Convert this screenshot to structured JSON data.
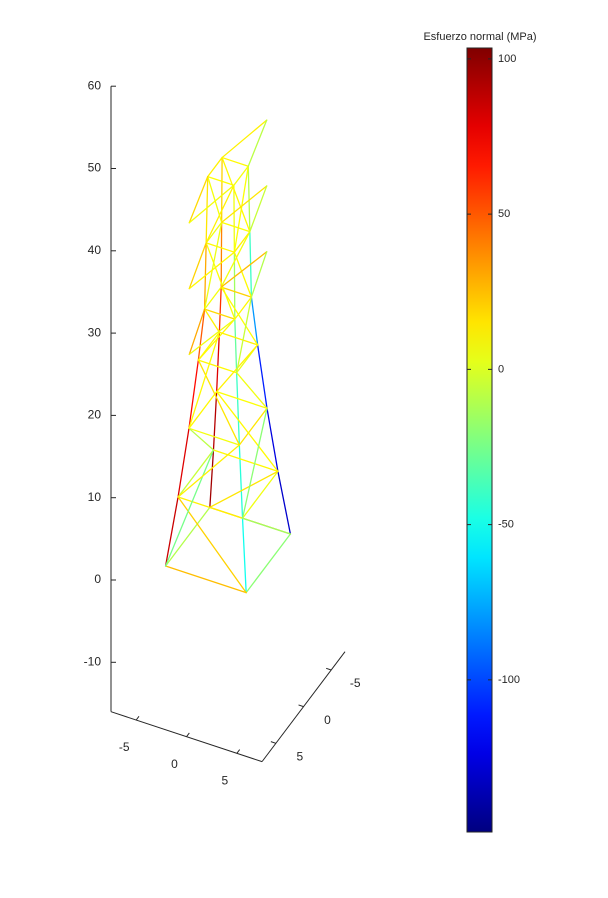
{
  "chart_data": {
    "type": "wireframe",
    "colormap": "jet",
    "xlim": [
      -7.5,
      7.5
    ],
    "ylim": [
      -7.5,
      7.5
    ],
    "zlim": [
      -16,
      60
    ],
    "xticks": [
      -5,
      0,
      5
    ],
    "yticks": [
      -5,
      0,
      5
    ],
    "zticks": [
      -10,
      0,
      10,
      20,
      30,
      40,
      50,
      60
    ],
    "colorbar": {
      "label": "Esfuerzo normal (MPa)",
      "clim": [
        -149,
        103.5
      ],
      "ticks": [
        -100,
        -50,
        0,
        50,
        100
      ]
    },
    "members": [
      [
        -4,
        -4,
        0,
        -3.2,
        -3.2,
        8
      ],
      [
        -3.2,
        -3.2,
        8,
        -2.5,
        -2.5,
        16
      ],
      [
        -2.5,
        -2.5,
        16,
        -1.9,
        -1.9,
        24
      ],
      [
        -1.9,
        -1.9,
        24,
        -1.5,
        -1.5,
        30
      ],
      [
        -1.5,
        -1.5,
        30,
        -1.4,
        -1.4,
        38
      ],
      [
        -1.4,
        -1.4,
        38,
        -1.3,
        -1.3,
        46
      ],
      [
        4,
        -4,
        0,
        3.2,
        -3.2,
        8
      ],
      [
        3.2,
        -3.2,
        8,
        2.5,
        -2.5,
        16
      ],
      [
        2.5,
        -2.5,
        16,
        1.9,
        -1.9,
        24
      ],
      [
        1.9,
        -1.9,
        24,
        1.5,
        -1.5,
        30
      ],
      [
        1.5,
        -1.5,
        30,
        1.4,
        -1.4,
        38
      ],
      [
        1.4,
        -1.4,
        38,
        1.3,
        -1.3,
        46
      ],
      [
        4,
        4,
        0,
        3.2,
        3.2,
        8
      ],
      [
        3.2,
        3.2,
        8,
        2.5,
        2.5,
        16
      ],
      [
        2.5,
        2.5,
        16,
        1.9,
        1.9,
        24
      ],
      [
        1.9,
        1.9,
        24,
        1.5,
        1.5,
        30
      ],
      [
        1.5,
        1.5,
        30,
        1.4,
        1.4,
        38
      ],
      [
        1.4,
        1.4,
        38,
        1.3,
        1.3,
        46
      ],
      [
        -4,
        4,
        0,
        -3.2,
        3.2,
        8
      ],
      [
        -3.2,
        3.2,
        8,
        -2.5,
        2.5,
        16
      ],
      [
        -2.5,
        2.5,
        16,
        -1.9,
        1.9,
        24
      ],
      [
        -1.9,
        1.9,
        24,
        -1.5,
        1.5,
        30
      ],
      [
        -1.5,
        1.5,
        30,
        -1.4,
        1.4,
        38
      ],
      [
        -1.4,
        1.4,
        38,
        -1.3,
        1.3,
        46
      ],
      [
        -4,
        -4,
        0,
        4,
        -4,
        0
      ],
      [
        4,
        -4,
        0,
        4,
        4,
        0
      ],
      [
        4,
        4,
        0,
        -4,
        4,
        0
      ],
      [
        -4,
        4,
        0,
        -4,
        -4,
        0
      ],
      [
        -3.2,
        -3.2,
        8,
        3.2,
        -3.2,
        8
      ],
      [
        3.2,
        -3.2,
        8,
        3.2,
        3.2,
        8
      ],
      [
        3.2,
        3.2,
        8,
        -3.2,
        3.2,
        8
      ],
      [
        -3.2,
        3.2,
        8,
        -3.2,
        -3.2,
        8
      ],
      [
        -2.5,
        -2.5,
        16,
        2.5,
        -2.5,
        16
      ],
      [
        2.5,
        -2.5,
        16,
        2.5,
        2.5,
        16
      ],
      [
        2.5,
        2.5,
        16,
        -2.5,
        2.5,
        16
      ],
      [
        -2.5,
        2.5,
        16,
        -2.5,
        -2.5,
        16
      ],
      [
        -1.9,
        -1.9,
        24,
        1.9,
        -1.9,
        24
      ],
      [
        1.9,
        -1.9,
        24,
        1.9,
        1.9,
        24
      ],
      [
        1.9,
        1.9,
        24,
        -1.9,
        1.9,
        24
      ],
      [
        -1.9,
        1.9,
        24,
        -1.9,
        -1.9,
        24
      ],
      [
        -1.5,
        -1.5,
        30,
        1.5,
        -1.5,
        30
      ],
      [
        1.5,
        -1.5,
        30,
        1.5,
        1.5,
        30
      ],
      [
        1.5,
        1.5,
        30,
        -1.5,
        1.5,
        30
      ],
      [
        -1.5,
        1.5,
        30,
        -1.5,
        -1.5,
        30
      ],
      [
        -1.4,
        -1.4,
        38,
        1.4,
        -1.4,
        38
      ],
      [
        1.4,
        -1.4,
        38,
        1.4,
        1.4,
        38
      ],
      [
        1.4,
        1.4,
        38,
        -1.4,
        1.4,
        38
      ],
      [
        -1.4,
        1.4,
        38,
        -1.4,
        -1.4,
        38
      ],
      [
        -1.3,
        -1.3,
        46,
        1.3,
        -1.3,
        46
      ],
      [
        1.3,
        -1.3,
        46,
        1.3,
        1.3,
        46
      ],
      [
        1.3,
        1.3,
        46,
        -1.3,
        1.3,
        46
      ],
      [
        -1.3,
        1.3,
        46,
        -1.3,
        -1.3,
        46
      ],
      [
        -4,
        -4,
        0,
        3.2,
        -3.2,
        8
      ],
      [
        4,
        -4,
        0,
        3.2,
        3.2,
        8
      ],
      [
        4,
        4,
        0,
        -3.2,
        3.2,
        8
      ],
      [
        -4,
        4,
        0,
        -3.2,
        -3.2,
        8
      ],
      [
        3.2,
        -3.2,
        8,
        -2.5,
        -2.5,
        16
      ],
      [
        3.2,
        3.2,
        8,
        2.5,
        -2.5,
        16
      ],
      [
        -3.2,
        3.2,
        8,
        2.5,
        2.5,
        16
      ],
      [
        -3.2,
        -3.2,
        8,
        -2.5,
        2.5,
        16
      ],
      [
        -2.5,
        -2.5,
        16,
        1.9,
        -1.9,
        24
      ],
      [
        2.5,
        -2.5,
        16,
        1.9,
        1.9,
        24
      ],
      [
        2.5,
        2.5,
        16,
        -1.9,
        1.9,
        24
      ],
      [
        -2.5,
        2.5,
        16,
        -1.9,
        -1.9,
        24
      ],
      [
        1.9,
        -1.9,
        24,
        -1.5,
        -1.5,
        30
      ],
      [
        1.9,
        1.9,
        24,
        1.5,
        -1.5,
        30
      ],
      [
        -1.9,
        1.9,
        24,
        1.5,
        1.5,
        30
      ],
      [
        -1.9,
        -1.9,
        24,
        -1.5,
        1.5,
        30
      ],
      [
        -1.5,
        -1.5,
        30,
        1.4,
        -1.4,
        38
      ],
      [
        1.5,
        -1.5,
        30,
        1.4,
        1.4,
        38
      ],
      [
        1.5,
        1.5,
        30,
        -1.4,
        1.4,
        38
      ],
      [
        -1.5,
        1.5,
        30,
        -1.4,
        -1.4,
        38
      ],
      [
        1.4,
        -1.4,
        38,
        -1.3,
        -1.3,
        46
      ],
      [
        1.4,
        1.4,
        38,
        1.3,
        -1.3,
        46
      ],
      [
        -1.4,
        1.4,
        38,
        1.3,
        1.3,
        46
      ],
      [
        -1.4,
        -1.4,
        38,
        -1.3,
        1.3,
        46
      ],
      [
        -1.5,
        -1.5,
        30,
        0,
        -7,
        30
      ],
      [
        1.5,
        -1.5,
        30,
        0,
        -7,
        30
      ],
      [
        -1.5,
        1.5,
        30,
        0,
        7,
        30
      ],
      [
        1.5,
        1.5,
        30,
        0,
        7,
        30
      ],
      [
        -1.4,
        -1.4,
        38,
        0,
        -7,
        38
      ],
      [
        1.4,
        -1.4,
        38,
        0,
        -7,
        38
      ],
      [
        -1.4,
        1.4,
        38,
        0,
        7,
        38
      ],
      [
        1.4,
        1.4,
        38,
        0,
        7,
        38
      ],
      [
        -1.3,
        -1.3,
        46,
        0,
        -7,
        46
      ],
      [
        1.3,
        -1.3,
        46,
        0,
        -7,
        46
      ],
      [
        -1.3,
        1.3,
        46,
        0,
        7,
        46
      ],
      [
        1.3,
        1.3,
        46,
        0,
        7,
        46
      ]
    ],
    "stress": [
      95,
      90,
      80,
      60,
      40,
      20,
      -130,
      -125,
      -110,
      -80,
      -40,
      -10,
      -50,
      -45,
      -40,
      -30,
      -15,
      5,
      85,
      80,
      70,
      50,
      30,
      15,
      30,
      -20,
      25,
      -10,
      10,
      5,
      12,
      -5,
      8,
      15,
      6,
      10,
      12,
      4,
      10,
      8,
      20,
      10,
      18,
      6,
      8,
      12,
      10,
      5,
      10,
      6,
      8,
      12,
      15,
      -15,
      20,
      -25,
      10,
      -20,
      12,
      -8,
      12,
      5,
      15,
      10,
      8,
      -5,
      10,
      12,
      6,
      10,
      8,
      4,
      10,
      8,
      12,
      6,
      25,
      -10,
      30,
      5,
      15,
      -5,
      20,
      10,
      12,
      -8,
      18,
      6
    ]
  }
}
